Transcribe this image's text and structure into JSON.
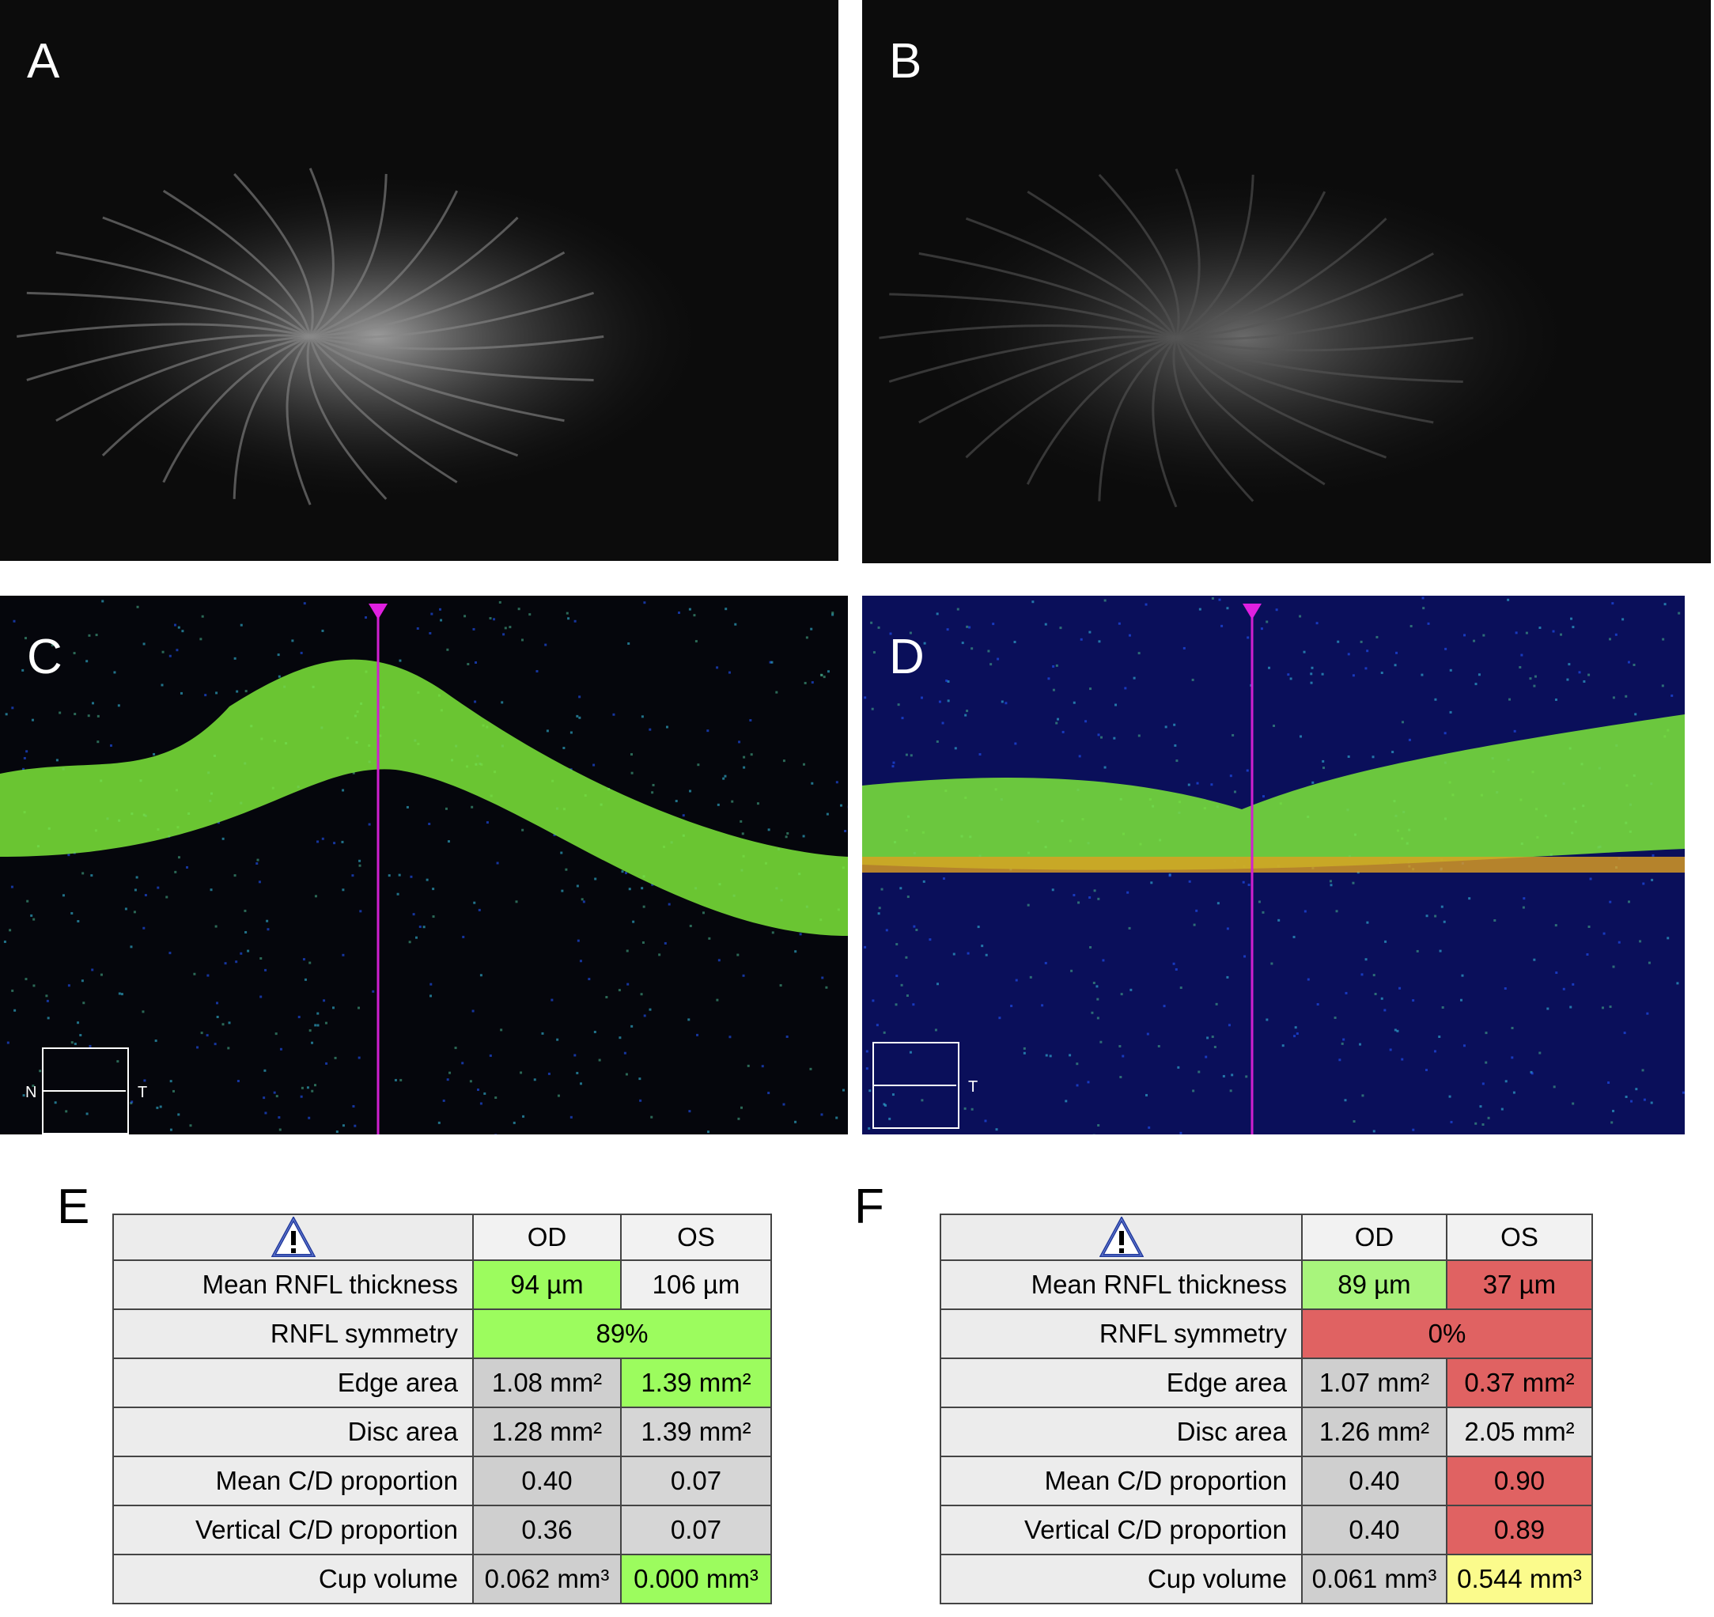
{
  "panels": [
    {
      "label": "A"
    },
    {
      "label": "B"
    },
    {
      "label": "C",
      "orientation": [
        "N",
        "T"
      ]
    },
    {
      "label": "D",
      "orientation": [
        "T"
      ]
    }
  ],
  "tables": [
    {
      "label": "E",
      "columns": [
        "OD",
        "OS"
      ],
      "rows": [
        {
          "label": "Mean RNFL thickness",
          "cells": [
            "94 µm",
            "106 µm"
          ],
          "colors": [
            "#9cfc5e",
            "#f0f0f0"
          ]
        },
        {
          "label": "RNFL symmetry",
          "cells": [
            "89%"
          ],
          "colors": [
            "#9cfc5e"
          ]
        },
        {
          "label": "Edge area",
          "cells": [
            "1.08 mm²",
            "1.39 mm²"
          ],
          "colors": [
            "#cfcfcf",
            "#9cfc5e"
          ]
        },
        {
          "label": "Disc area",
          "cells": [
            "1.28 mm²",
            "1.39 mm²"
          ],
          "colors": [
            "#cfcfcf",
            "#d6d6d6"
          ]
        },
        {
          "label": "Mean C/D proportion",
          "cells": [
            "0.40",
            "0.07"
          ],
          "colors": [
            "#cfcfcf",
            "#d6d6d6"
          ]
        },
        {
          "label": "Vertical C/D proportion",
          "cells": [
            "0.36",
            "0.07"
          ],
          "colors": [
            "#cfcfcf",
            "#d6d6d6"
          ]
        },
        {
          "label": "Cup volume",
          "cells": [
            "0.062 mm³",
            "0.000 mm³"
          ],
          "colors": [
            "#cfcfcf",
            "#9cfc5e"
          ]
        }
      ]
    },
    {
      "label": "F",
      "columns": [
        "OD",
        "OS"
      ],
      "rows": [
        {
          "label": "Mean RNFL thickness",
          "cells": [
            "89 µm",
            "37 µm"
          ],
          "colors": [
            "#a8f57c",
            "#e06262"
          ]
        },
        {
          "label": "RNFL symmetry",
          "cells": [
            "0%"
          ],
          "colors": [
            "#e06262"
          ]
        },
        {
          "label": "Edge area",
          "cells": [
            "1.07 mm²",
            "0.37 mm²"
          ],
          "colors": [
            "#cfcfcf",
            "#e06262"
          ]
        },
        {
          "label": "Disc area",
          "cells": [
            "1.26 mm²",
            "2.05 mm²"
          ],
          "colors": [
            "#cfcfcf",
            "#e4e4e4"
          ]
        },
        {
          "label": "Mean C/D proportion",
          "cells": [
            "0.40",
            "0.90"
          ],
          "colors": [
            "#cfcfcf",
            "#e06262"
          ]
        },
        {
          "label": "Vertical C/D proportion",
          "cells": [
            "0.40",
            "0.89"
          ],
          "colors": [
            "#cfcfcf",
            "#e06262"
          ]
        },
        {
          "label": "Cup volume",
          "cells": [
            "0.061 mm³",
            "0.544 mm³"
          ],
          "colors": [
            "#cfcfcf",
            "#fbfb8c"
          ]
        }
      ]
    }
  ]
}
